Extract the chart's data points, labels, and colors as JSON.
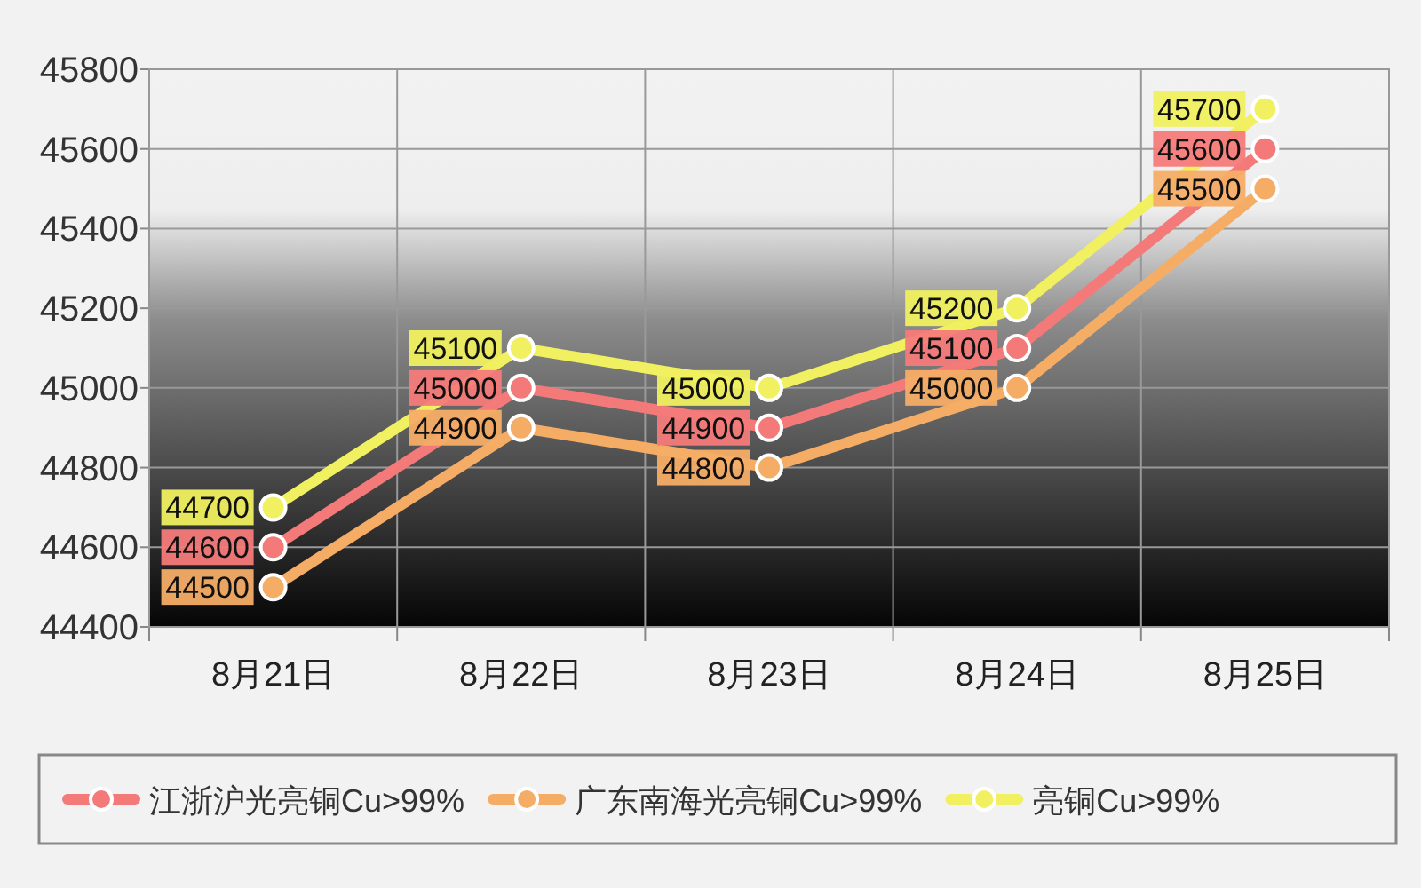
{
  "chart_data": {
    "type": "line",
    "categories": [
      "8月21日",
      "8月22日",
      "8月23日",
      "8月24日",
      "8月25日"
    ],
    "series": [
      {
        "name": "江浙沪光亮铜Cu>99%",
        "color": "#f47a7a",
        "values": [
          44600,
          45000,
          44900,
          45100,
          45600
        ]
      },
      {
        "name": "广东南海光亮铜Cu>99%",
        "color": "#f5ad66",
        "values": [
          44500,
          44900,
          44800,
          45000,
          45500
        ]
      },
      {
        "name": "亮铜Cu>99%",
        "color": "#f0f060",
        "values": [
          44700,
          45100,
          45000,
          45200,
          45700
        ]
      }
    ],
    "ylim": [
      44400,
      45800
    ],
    "yticks": [
      44400,
      44600,
      44800,
      45000,
      45200,
      45400,
      45600,
      45800
    ],
    "grid": true,
    "legend": "bottom",
    "marker": "circle",
    "data_labels": true
  }
}
